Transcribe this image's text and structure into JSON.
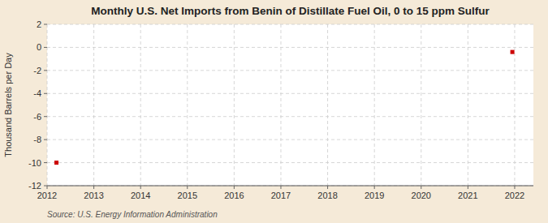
{
  "chart_data": {
    "type": "scatter",
    "title": "Monthly U.S. Net Imports from Benin of Distillate Fuel Oil, 0 to 15 ppm Sulfur",
    "ylabel": "Thousand Barrels per Day",
    "source": "Source: U.S. Energy Information Administration",
    "x": [
      2012.2,
      2021.95
    ],
    "values": [
      -10.0,
      -0.4
    ],
    "color": "#cc0000",
    "marker": "square",
    "xlim": [
      2012,
      2022.4
    ],
    "ylim": [
      -12,
      2
    ],
    "xticks": [
      2012,
      2013,
      2014,
      2015,
      2016,
      2017,
      2018,
      2019,
      2020,
      2021,
      2022
    ],
    "yticks": [
      2,
      0,
      -2,
      -4,
      -6,
      -8,
      -10,
      -12
    ],
    "grid": true
  }
}
